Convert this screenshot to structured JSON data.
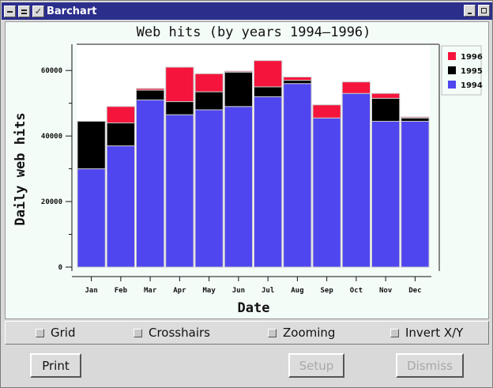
{
  "window": {
    "title": "Barchart"
  },
  "chart_data": {
    "type": "bar",
    "stacked": true,
    "title": "Web hits (by years 1994–1996)",
    "xlabel": "Date",
    "ylabel": "Daily web hits",
    "categories": [
      "Jan",
      "Feb",
      "Mar",
      "Apr",
      "May",
      "Jun",
      "Jul",
      "Aug",
      "Sep",
      "Oct",
      "Nov",
      "Dec"
    ],
    "series": [
      {
        "name": "1994",
        "color": "#5046f0",
        "values": [
          30000,
          37000,
          51000,
          46500,
          48000,
          49000,
          52000,
          56000,
          45500,
          53000,
          44500,
          44500
        ]
      },
      {
        "name": "1995",
        "color": "#000000",
        "values": [
          14500,
          7000,
          3000,
          4000,
          5500,
          10500,
          3000,
          1000,
          0,
          0,
          7000,
          1000
        ]
      },
      {
        "name": "1996",
        "color": "#f5143c",
        "values": [
          0,
          5000,
          500,
          10500,
          5500,
          300,
          8000,
          1000,
          4000,
          3500,
          1500,
          300
        ]
      }
    ],
    "ylim": [
      0,
      68000
    ],
    "yticks": [
      0,
      20000,
      40000,
      60000
    ],
    "ytick_labels": [
      "0",
      "20000",
      "40000",
      "60000"
    ],
    "grid": false,
    "legend_position": "top-right"
  },
  "options": {
    "grid": "Grid",
    "crosshairs": "Crosshairs",
    "zooming": "Zooming",
    "invert": "Invert X/Y"
  },
  "buttons": {
    "print": "Print",
    "setup": "Setup",
    "dismiss": "Dismiss"
  }
}
